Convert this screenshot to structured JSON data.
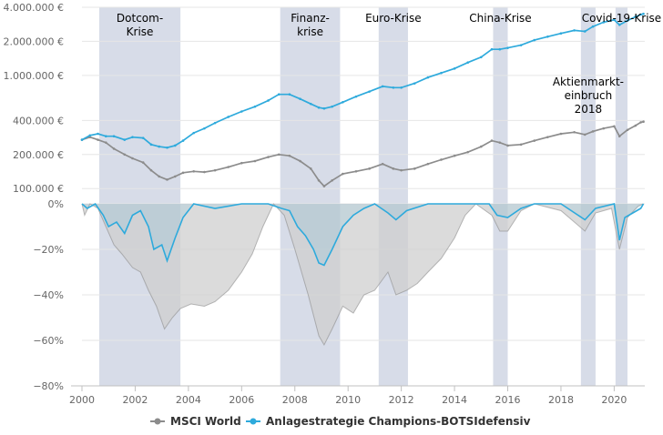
{
  "chart_data": [
    {
      "type": "line",
      "panel": "top",
      "scale": "log",
      "xlim": [
        2000,
        2021.15
      ],
      "ylim": [
        95000,
        4000000
      ],
      "yticks": [
        {
          "value": 100000,
          "label": "100.000 €"
        },
        {
          "value": 200000,
          "label": "200.000 €"
        },
        {
          "value": 400000,
          "label": "400.000 €"
        },
        {
          "value": 1000000,
          "label": "1.000.000 €"
        },
        {
          "value": 2000000,
          "label": "2.000.000 €"
        },
        {
          "value": 4000000,
          "label": "4.000.000 €"
        }
      ],
      "grid": true,
      "crises": [
        {
          "label": "Dotcom-\nKrise",
          "start": 2000.65,
          "end": 2003.7
        },
        {
          "label": "Finanz-\nkrise",
          "start": 2007.45,
          "end": 2009.7
        },
        {
          "label": "Euro-Krise",
          "start": 2011.15,
          "end": 2012.25
        },
        {
          "label": "China-Krise",
          "start": 2015.45,
          "end": 2016.0
        },
        {
          "label": "Aktienmarkt-\neinbruch\n2018",
          "start": 2018.75,
          "end": 2019.3
        },
        {
          "label": "Covid-19-Krise",
          "start": 2020.05,
          "end": 2020.5
        }
      ],
      "series": [
        {
          "name": "MSCI World",
          "color": "#8c8c8c",
          "points": [
            [
              2000,
              270000
            ],
            [
              2000.3,
              285000
            ],
            [
              2000.6,
              270000
            ],
            [
              2000.9,
              255000
            ],
            [
              2001.2,
              225000
            ],
            [
              2001.6,
              200000
            ],
            [
              2001.9,
              185000
            ],
            [
              2002.3,
              170000
            ],
            [
              2002.6,
              145000
            ],
            [
              2002.9,
              128000
            ],
            [
              2003.2,
              120000
            ],
            [
              2003.5,
              128000
            ],
            [
              2003.8,
              138000
            ],
            [
              2004.2,
              142000
            ],
            [
              2004.6,
              140000
            ],
            [
              2005.0,
              145000
            ],
            [
              2005.5,
              155000
            ],
            [
              2006.0,
              168000
            ],
            [
              2006.5,
              175000
            ],
            [
              2007.0,
              190000
            ],
            [
              2007.4,
              200000
            ],
            [
              2007.8,
              195000
            ],
            [
              2008.2,
              175000
            ],
            [
              2008.6,
              150000
            ],
            [
              2008.9,
              118000
            ],
            [
              2009.1,
              105000
            ],
            [
              2009.4,
              118000
            ],
            [
              2009.8,
              135000
            ],
            [
              2010.3,
              142000
            ],
            [
              2010.8,
              150000
            ],
            [
              2011.3,
              165000
            ],
            [
              2011.7,
              150000
            ],
            [
              2012.0,
              145000
            ],
            [
              2012.5,
              150000
            ],
            [
              2013.0,
              165000
            ],
            [
              2013.5,
              180000
            ],
            [
              2014.0,
              195000
            ],
            [
              2014.5,
              210000
            ],
            [
              2015.0,
              235000
            ],
            [
              2015.4,
              265000
            ],
            [
              2015.7,
              255000
            ],
            [
              2016.0,
              240000
            ],
            [
              2016.5,
              245000
            ],
            [
              2017.0,
              265000
            ],
            [
              2017.5,
              285000
            ],
            [
              2018.0,
              305000
            ],
            [
              2018.5,
              315000
            ],
            [
              2018.9,
              300000
            ],
            [
              2019.2,
              320000
            ],
            [
              2019.6,
              340000
            ],
            [
              2020.0,
              355000
            ],
            [
              2020.2,
              290000
            ],
            [
              2020.5,
              330000
            ],
            [
              2020.8,
              360000
            ],
            [
              2021.0,
              385000
            ],
            [
              2021.1,
              390000
            ]
          ]
        },
        {
          "name": "Anlagestrategie Champions-BOTSIdefensiv",
          "color": "#2eaadc",
          "points": [
            [
              2000,
              270000
            ],
            [
              2000.3,
              295000
            ],
            [
              2000.6,
              305000
            ],
            [
              2000.9,
              290000
            ],
            [
              2001.2,
              290000
            ],
            [
              2001.6,
              270000
            ],
            [
              2001.9,
              285000
            ],
            [
              2002.3,
              280000
            ],
            [
              2002.6,
              245000
            ],
            [
              2002.9,
              235000
            ],
            [
              2003.2,
              230000
            ],
            [
              2003.5,
              240000
            ],
            [
              2003.8,
              265000
            ],
            [
              2004.2,
              310000
            ],
            [
              2004.6,
              340000
            ],
            [
              2005.0,
              380000
            ],
            [
              2005.5,
              430000
            ],
            [
              2006.0,
              480000
            ],
            [
              2006.5,
              530000
            ],
            [
              2007.0,
              600000
            ],
            [
              2007.4,
              680000
            ],
            [
              2007.8,
              680000
            ],
            [
              2008.2,
              620000
            ],
            [
              2008.6,
              560000
            ],
            [
              2008.9,
              520000
            ],
            [
              2009.1,
              510000
            ],
            [
              2009.4,
              530000
            ],
            [
              2009.8,
              580000
            ],
            [
              2010.3,
              650000
            ],
            [
              2010.8,
              720000
            ],
            [
              2011.3,
              800000
            ],
            [
              2011.7,
              780000
            ],
            [
              2012.0,
              780000
            ],
            [
              2012.5,
              850000
            ],
            [
              2013.0,
              960000
            ],
            [
              2013.5,
              1050000
            ],
            [
              2014.0,
              1150000
            ],
            [
              2014.5,
              1300000
            ],
            [
              2015.0,
              1450000
            ],
            [
              2015.4,
              1700000
            ],
            [
              2015.7,
              1700000
            ],
            [
              2016.0,
              1750000
            ],
            [
              2016.5,
              1850000
            ],
            [
              2017.0,
              2050000
            ],
            [
              2017.5,
              2200000
            ],
            [
              2018.0,
              2350000
            ],
            [
              2018.5,
              2500000
            ],
            [
              2018.9,
              2450000
            ],
            [
              2019.2,
              2700000
            ],
            [
              2019.6,
              2950000
            ],
            [
              2020.0,
              3100000
            ],
            [
              2020.2,
              2800000
            ],
            [
              2020.5,
              3050000
            ],
            [
              2020.8,
              3300000
            ],
            [
              2021.0,
              3450000
            ],
            [
              2021.1,
              3500000
            ]
          ]
        }
      ]
    },
    {
      "type": "area",
      "panel": "drawdown",
      "xlim": [
        2000,
        2021.15
      ],
      "ylim": [
        -80,
        0
      ],
      "yticks": [
        {
          "value": 0,
          "label": "0%"
        },
        {
          "value": -20,
          "label": "−20%"
        },
        {
          "value": -40,
          "label": "−40%"
        },
        {
          "value": -60,
          "label": "−60%"
        },
        {
          "value": -80,
          "label": "−80%"
        }
      ],
      "xticks": [
        2000,
        2002,
        2004,
        2006,
        2008,
        2010,
        2012,
        2014,
        2016,
        2018,
        2020
      ],
      "series": [
        {
          "name": "MSCI World",
          "color": "#8c8c8c",
          "points": [
            [
              2000,
              0
            ],
            [
              2000.1,
              -5
            ],
            [
              2000.3,
              0
            ],
            [
              2000.6,
              -2
            ],
            [
              2000.9,
              -10
            ],
            [
              2001.2,
              -18
            ],
            [
              2001.5,
              -22
            ],
            [
              2001.9,
              -28
            ],
            [
              2002.2,
              -30
            ],
            [
              2002.5,
              -38
            ],
            [
              2002.8,
              -45
            ],
            [
              2003.1,
              -55
            ],
            [
              2003.4,
              -50
            ],
            [
              2003.7,
              -46
            ],
            [
              2004.1,
              -44
            ],
            [
              2004.6,
              -45
            ],
            [
              2005.0,
              -43
            ],
            [
              2005.5,
              -38
            ],
            [
              2006.0,
              -30
            ],
            [
              2006.4,
              -22
            ],
            [
              2006.8,
              -10
            ],
            [
              2007.2,
              0
            ],
            [
              2007.6,
              -5
            ],
            [
              2008.0,
              -20
            ],
            [
              2008.5,
              -40
            ],
            [
              2008.9,
              -58
            ],
            [
              2009.1,
              -62
            ],
            [
              2009.4,
              -55
            ],
            [
              2009.8,
              -45
            ],
            [
              2010.2,
              -48
            ],
            [
              2010.6,
              -40
            ],
            [
              2011.0,
              -38
            ],
            [
              2011.5,
              -30
            ],
            [
              2011.8,
              -40
            ],
            [
              2012.2,
              -38
            ],
            [
              2012.6,
              -35
            ],
            [
              2013.0,
              -30
            ],
            [
              2013.5,
              -24
            ],
            [
              2014.0,
              -15
            ],
            [
              2014.4,
              -5
            ],
            [
              2014.8,
              0
            ],
            [
              2015.4,
              -5
            ],
            [
              2015.7,
              -12
            ],
            [
              2016.0,
              -12
            ],
            [
              2016.5,
              -3
            ],
            [
              2017.0,
              0
            ],
            [
              2018.0,
              -3
            ],
            [
              2018.9,
              -12
            ],
            [
              2019.3,
              -4
            ],
            [
              2019.9,
              -2
            ],
            [
              2020.2,
              -20
            ],
            [
              2020.5,
              -6
            ],
            [
              2020.9,
              -1
            ],
            [
              2021.1,
              0
            ]
          ]
        },
        {
          "name": "Anlagestrategie Champions-BOTSIdefensiv",
          "color": "#2eaadc",
          "points": [
            [
              2000,
              0
            ],
            [
              2000.2,
              -2
            ],
            [
              2000.5,
              0
            ],
            [
              2000.8,
              -5
            ],
            [
              2001.0,
              -10
            ],
            [
              2001.3,
              -8
            ],
            [
              2001.6,
              -13
            ],
            [
              2001.9,
              -5
            ],
            [
              2002.2,
              -3
            ],
            [
              2002.5,
              -10
            ],
            [
              2002.7,
              -20
            ],
            [
              2003.0,
              -18
            ],
            [
              2003.2,
              -25
            ],
            [
              2003.5,
              -15
            ],
            [
              2003.8,
              -6
            ],
            [
              2004.2,
              0
            ],
            [
              2005.0,
              -2
            ],
            [
              2006.0,
              0
            ],
            [
              2007.0,
              0
            ],
            [
              2007.5,
              -2
            ],
            [
              2007.8,
              -3
            ],
            [
              2008.1,
              -10
            ],
            [
              2008.4,
              -14
            ],
            [
              2008.7,
              -20
            ],
            [
              2008.9,
              -26
            ],
            [
              2009.1,
              -27
            ],
            [
              2009.4,
              -20
            ],
            [
              2009.8,
              -10
            ],
            [
              2010.2,
              -5
            ],
            [
              2010.6,
              -2
            ],
            [
              2011.0,
              0
            ],
            [
              2011.5,
              -4
            ],
            [
              2011.8,
              -7
            ],
            [
              2012.2,
              -3
            ],
            [
              2013.0,
              0
            ],
            [
              2014.0,
              0
            ],
            [
              2015.3,
              0
            ],
            [
              2015.6,
              -5
            ],
            [
              2016.0,
              -6
            ],
            [
              2016.5,
              -2
            ],
            [
              2017.0,
              0
            ],
            [
              2018.0,
              0
            ],
            [
              2018.9,
              -7
            ],
            [
              2019.3,
              -2
            ],
            [
              2020.0,
              0
            ],
            [
              2020.2,
              -16
            ],
            [
              2020.4,
              -6
            ],
            [
              2020.7,
              -4
            ],
            [
              2021.0,
              -2
            ],
            [
              2021.1,
              0
            ]
          ]
        }
      ]
    }
  ],
  "legend": [
    {
      "label": "MSCI World",
      "color": "#8c8c8c"
    },
    {
      "label": "Anlagestrategie Champions-BOTSIdefensiv",
      "color": "#2eaadc"
    }
  ],
  "colors": {
    "band": "#d7dce8",
    "grid": "#e6e6e6",
    "axis": "#c0c0c0",
    "drawdown_fill": "#cfcfcf"
  }
}
